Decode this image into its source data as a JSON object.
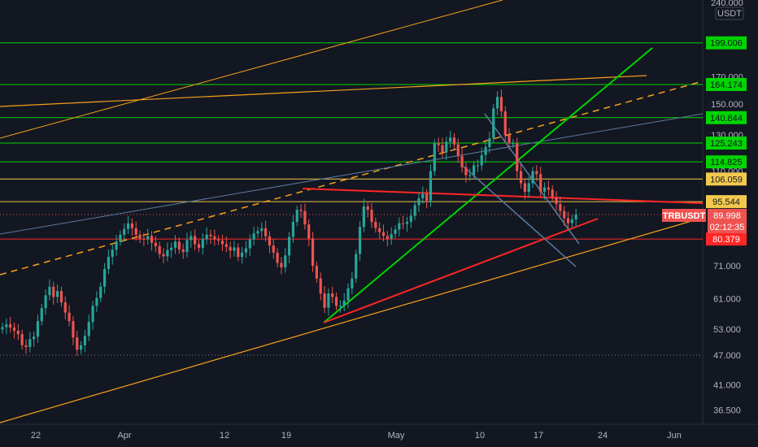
{
  "chart_data": {
    "type": "candlestick",
    "symbol": "TRBUSDT",
    "currency": "USDT",
    "last_price": "89.998",
    "countdown": "02:12:35",
    "scale": "log",
    "grid": false,
    "colors": {
      "background": "#131722",
      "up": "#26a69a",
      "down": "#ef5350",
      "green_line": "#00d400",
      "yellow_line": "#f2c94c",
      "orange_line": "#f7a21b",
      "red_line": "#ff2626",
      "blue_line": "#5b7aa1",
      "axis_text": "#b2b5be"
    },
    "y_ticks": [
      {
        "label": "240.000",
        "value": 240
      },
      {
        "label": "170.000",
        "value": 170
      },
      {
        "label": "150.000",
        "value": 150
      },
      {
        "label": "130.000",
        "value": 130
      },
      {
        "label": "110.000",
        "value": 110
      },
      {
        "label": "71.000",
        "value": 71
      },
      {
        "label": "61.000",
        "value": 61
      },
      {
        "label": "53.000",
        "value": 53
      },
      {
        "label": "47.000",
        "value": 47
      },
      {
        "label": "41.000",
        "value": 41
      },
      {
        "label": "36.500",
        "value": 36.5
      }
    ],
    "x_ticks": [
      "22",
      "Apr",
      "12",
      "19",
      "May",
      "10",
      "17",
      "24",
      "Jun"
    ],
    "price_tags": [
      {
        "label": "199.006",
        "value": 199.006,
        "color": "#00d400"
      },
      {
        "label": "164.174",
        "value": 164.174,
        "color": "#00d400"
      },
      {
        "label": "140.844",
        "value": 140.844,
        "color": "#00d400"
      },
      {
        "label": "125.243",
        "value": 125.243,
        "color": "#00d400"
      },
      {
        "label": "114.825",
        "value": 114.825,
        "color": "#00d400"
      },
      {
        "label": "106.059",
        "value": 106.059,
        "color": "#f2c94c"
      },
      {
        "label": "95.544",
        "value": 95.544,
        "color": "#f2c94c"
      },
      {
        "label": "80.379",
        "value": 80.379,
        "color": "#ff2626"
      }
    ],
    "dotted_levels": [
      89.998,
      47.0
    ],
    "candles_close": [
      53.5,
      54.2,
      53.4,
      52.6,
      51.8,
      49.2,
      48.8,
      50.6,
      51.2,
      55.0,
      58.4,
      62.0,
      64.5,
      61.5,
      63.2,
      60.0,
      57.2,
      55.0,
      51.0,
      48.2,
      49.2,
      51.4,
      54.8,
      59.0,
      61.2,
      64.5,
      70.0,
      74.0,
      76.5,
      79.5,
      82.0,
      84.2,
      86.4,
      84.5,
      82.0,
      80.5,
      80.3,
      81.5,
      79.0,
      77.8,
      75.0,
      74.2,
      76.4,
      77.2,
      79.4,
      76.6,
      75.7,
      80.0,
      81.5,
      78.5,
      77.2,
      80.3,
      82.0,
      81.4,
      80.2,
      79.8,
      78.5,
      77.5,
      76.2,
      77.3,
      74.0,
      75.5,
      77.0,
      80.2,
      82.5,
      83.4,
      84.5,
      81.4,
      78.0,
      75.5,
      72.0,
      70.5,
      74.5,
      81.2,
      87.0,
      92.0,
      91.5,
      86.0,
      80.6,
      71.0,
      67.0,
      62.5,
      58.5,
      62.5,
      61.5,
      59.0,
      59.0,
      60.5,
      64.0,
      67.0,
      75.0,
      85.0,
      93.5,
      92.0,
      87.0,
      84.5,
      83.0,
      81.5,
      80.5,
      82.3,
      84.0,
      86.5,
      86.2,
      87.0,
      89.5,
      94.0,
      97.0,
      99.0,
      96.0,
      110.0,
      125.0,
      124.0,
      120.0,
      126.0,
      128.5,
      124.5,
      118.0,
      112.0,
      108.0,
      108.0,
      113.0,
      113.0,
      118.5,
      123.0,
      128.0,
      147.0,
      155.0,
      145.0,
      130.0,
      125.0,
      125.0,
      110.0,
      104.0,
      100.0,
      104.0,
      110.0,
      108.5,
      100.0,
      102.0,
      101.0,
      97.5,
      94.5,
      91.5,
      88.5,
      86.5,
      88.0,
      89.998
    ]
  }
}
